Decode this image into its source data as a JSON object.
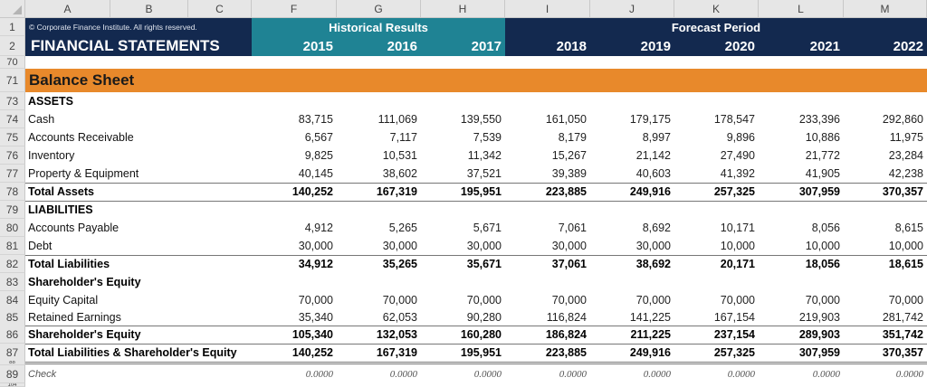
{
  "column_headers": [
    "A",
    "B",
    "C",
    "F",
    "G",
    "H",
    "I",
    "J",
    "K",
    "L",
    "M"
  ],
  "banner": {
    "copyright": "© Corporate Finance Institute. All rights reserved.",
    "title": "FINANCIAL STATEMENTS",
    "historical_label": "Historical Results",
    "forecast_label": "Forecast Period",
    "years": [
      "2015",
      "2016",
      "2017",
      "2018",
      "2019",
      "2020",
      "2021",
      "2022"
    ],
    "colors": {
      "navy": "#13294f",
      "teal": "#1f8394",
      "orange": "#e8892b"
    }
  },
  "section_title": "Balance Sheet",
  "row_numbers": {
    "r1": "1",
    "r2": "2",
    "r70": "70",
    "r71": "71",
    "r88": "88",
    "r104": "104"
  },
  "rows": [
    {
      "num": "73",
      "label": "ASSETS",
      "style": "header",
      "values": []
    },
    {
      "num": "74",
      "label": "Cash",
      "style": "normal",
      "values": [
        "83,715",
        "111,069",
        "139,550",
        "161,050",
        "179,175",
        "178,547",
        "233,396",
        "292,860"
      ]
    },
    {
      "num": "75",
      "label": "Accounts Receivable",
      "style": "normal",
      "values": [
        "6,567",
        "7,117",
        "7,539",
        "8,179",
        "8,997",
        "9,896",
        "10,886",
        "11,975"
      ]
    },
    {
      "num": "76",
      "label": "Inventory",
      "style": "normal",
      "values": [
        "9,825",
        "10,531",
        "11,342",
        "15,267",
        "21,142",
        "27,490",
        "21,772",
        "23,284"
      ]
    },
    {
      "num": "77",
      "label": "Property & Equipment",
      "style": "normal",
      "values": [
        "40,145",
        "38,602",
        "37,521",
        "39,389",
        "40,603",
        "41,392",
        "41,905",
        "42,238"
      ]
    },
    {
      "num": "78",
      "label": "Total Assets",
      "style": "total",
      "values": [
        "140,252",
        "167,319",
        "195,951",
        "223,885",
        "249,916",
        "257,325",
        "307,959",
        "370,357"
      ]
    },
    {
      "num": "79",
      "label": "LIABILITIES",
      "style": "header",
      "values": []
    },
    {
      "num": "80",
      "label": "Accounts Payable",
      "style": "normal",
      "values": [
        "4,912",
        "5,265",
        "5,671",
        "7,061",
        "8,692",
        "10,171",
        "8,056",
        "8,615"
      ]
    },
    {
      "num": "81",
      "label": "Debt",
      "style": "normal",
      "values": [
        "30,000",
        "30,000",
        "30,000",
        "30,000",
        "30,000",
        "10,000",
        "10,000",
        "10,000"
      ]
    },
    {
      "num": "82",
      "label": "Total Liabilities",
      "style": "total",
      "values": [
        "34,912",
        "35,265",
        "35,671",
        "37,061",
        "38,692",
        "20,171",
        "18,056",
        "18,615"
      ]
    },
    {
      "num": "83",
      "label": "Shareholder's Equity",
      "style": "header",
      "values": []
    },
    {
      "num": "84",
      "label": "Equity Capital",
      "style": "normal",
      "values": [
        "70,000",
        "70,000",
        "70,000",
        "70,000",
        "70,000",
        "70,000",
        "70,000",
        "70,000"
      ]
    },
    {
      "num": "85",
      "label": "Retained Earnings",
      "style": "normal",
      "values": [
        "35,340",
        "62,053",
        "90,280",
        "116,824",
        "141,225",
        "167,154",
        "219,903",
        "281,742"
      ]
    },
    {
      "num": "86",
      "label": "Shareholder's Equity",
      "style": "total",
      "values": [
        "105,340",
        "132,053",
        "160,280",
        "186,824",
        "211,225",
        "237,154",
        "289,903",
        "351,742"
      ]
    },
    {
      "num": "87",
      "label": "Total Liabilities & Shareholder's Equity",
      "style": "grandtotal",
      "values": [
        "140,252",
        "167,319",
        "195,951",
        "223,885",
        "249,916",
        "257,325",
        "307,959",
        "370,357"
      ]
    },
    {
      "num": "89",
      "label": "Check",
      "style": "check",
      "values": [
        "0.0000",
        "0.0000",
        "0.0000",
        "0.0000",
        "0.0000",
        "0.0000",
        "0.0000",
        "0.0000"
      ]
    }
  ]
}
